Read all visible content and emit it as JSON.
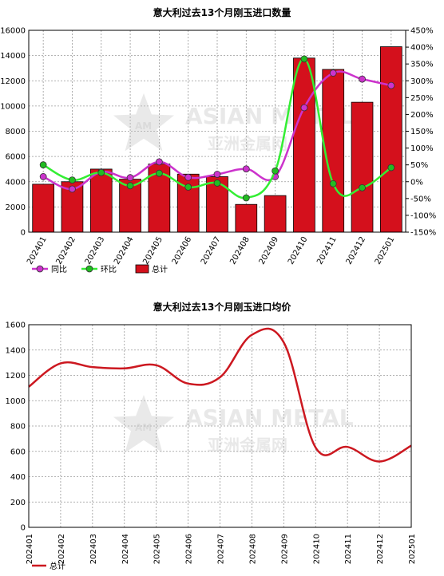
{
  "watermark": {
    "text_en": "ASIAN METAL",
    "text_cn": "亚洲金属网",
    "badge": "AM"
  },
  "chart_data": [
    {
      "type": "bar",
      "title": "意大利过去13个月刚玉进口数量",
      "categories": [
        "202401",
        "202402",
        "202403",
        "202404",
        "202405",
        "202406",
        "202407",
        "202408",
        "202409",
        "202410",
        "202411",
        "202412",
        "202501"
      ],
      "y_left": {
        "min": 0,
        "max": 16000,
        "ticks": [
          0,
          2000,
          4000,
          6000,
          8000,
          10000,
          12000,
          14000,
          16000
        ]
      },
      "y_right": {
        "min": -150,
        "max": 450,
        "ticks": [
          "-150%",
          "-100%",
          "-50%",
          "0%",
          "50%",
          "100%",
          "150%",
          "200%",
          "250%",
          "300%",
          "350%",
          "400%",
          "450%"
        ]
      },
      "grid": true,
      "legend_position": "bottom-left",
      "series": [
        {
          "name": "总计",
          "kind": "bar",
          "axis": "left",
          "color": "#d4101c",
          "values": [
            3800,
            4000,
            5000,
            4200,
            5400,
            4600,
            4400,
            2200,
            2900,
            13800,
            12900,
            10300,
            14700
          ]
        },
        {
          "name": "同比",
          "kind": "line",
          "axis": "right",
          "color": "#cc33cc",
          "marker_fill": "#cc33cc",
          "values": [
            15,
            -22,
            29,
            12,
            59,
            13,
            22,
            38,
            15,
            220,
            323,
            305,
            286
          ]
        },
        {
          "name": "环比",
          "kind": "line",
          "axis": "right",
          "color": "#33ee33",
          "marker_fill": "#22bb22",
          "values": [
            50,
            5,
            27,
            -12,
            25,
            -16,
            -4,
            -48,
            32,
            365,
            -6,
            -18,
            42
          ]
        }
      ]
    },
    {
      "type": "line",
      "title": "意大利过去13个月刚玉进口均价",
      "categories": [
        "202401",
        "202402",
        "202403",
        "202404",
        "202405",
        "202406",
        "202407",
        "202408",
        "202409",
        "202410",
        "202411",
        "202412",
        "202501"
      ],
      "y": {
        "min": 0,
        "max": 1600,
        "ticks": [
          0,
          200,
          400,
          600,
          800,
          1000,
          1200,
          1400,
          1600
        ]
      },
      "grid": true,
      "legend_position": "bottom-left",
      "series": [
        {
          "name": "总计",
          "color": "#cc1820",
          "values": [
            1110,
            1295,
            1265,
            1255,
            1280,
            1135,
            1185,
            1520,
            1460,
            630,
            635,
            520,
            645
          ]
        }
      ]
    }
  ]
}
